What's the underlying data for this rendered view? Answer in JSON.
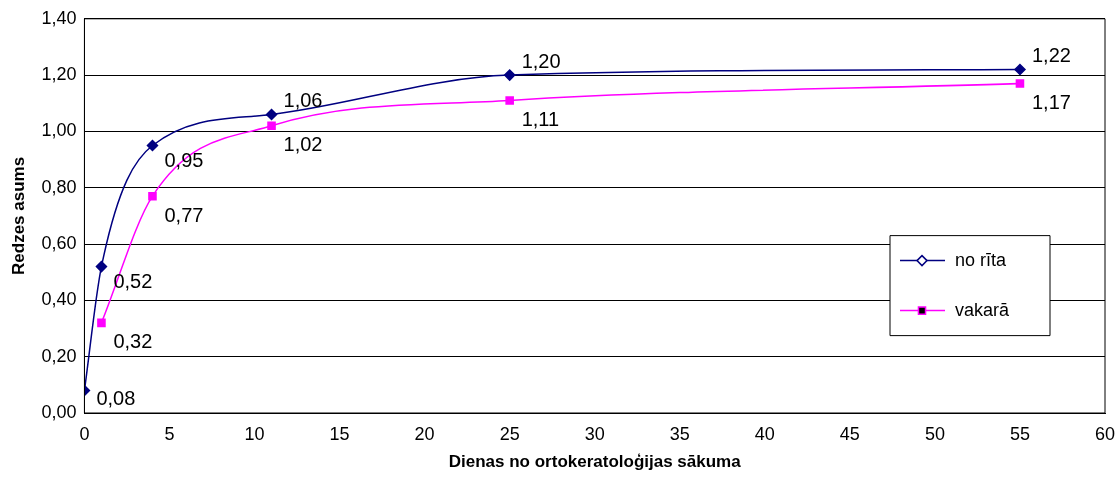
{
  "chart_data": {
    "type": "line",
    "xlabel": "Dienas no ortokeratoloģijas sākuma",
    "ylabel": "Redzes asums",
    "xlim": [
      0,
      60
    ],
    "xticks": [
      0,
      5,
      10,
      15,
      20,
      25,
      30,
      35,
      40,
      45,
      50,
      55,
      60
    ],
    "ylim": [
      0,
      1.4
    ],
    "yticks": [
      {
        "value": 0,
        "label": "0,00"
      },
      {
        "value": 0.2,
        "label": "0,20"
      },
      {
        "value": 0.4,
        "label": "0,40"
      },
      {
        "value": 0.6,
        "label": "0,60"
      },
      {
        "value": 0.8,
        "label": "0,80"
      },
      {
        "value": 1,
        "label": "1,00"
      },
      {
        "value": 1.2,
        "label": "1,20"
      },
      {
        "value": 1.4,
        "label": "1,40"
      }
    ],
    "grid": "y",
    "legend": "right",
    "line_style": "solid",
    "series": [
      {
        "name": "no rīta",
        "color": "#000080",
        "marker": "diamond",
        "x": [
          0,
          1,
          4,
          11,
          25,
          55
        ],
        "values": [
          0.08,
          0.52,
          0.95,
          1.06,
          1.2,
          1.22
        ],
        "value_labels": [
          "0,08",
          "0,52",
          "0,95",
          "1,06",
          "1,20",
          "1,22"
        ]
      },
      {
        "name": "vakarā",
        "color": "#ff00ff",
        "marker": "square",
        "x": [
          1,
          4,
          11,
          25,
          55
        ],
        "values": [
          0.32,
          0.77,
          1.02,
          1.11,
          1.17
        ],
        "value_labels": [
          "0,32",
          "0,77",
          "1,02",
          "1,11",
          "1,17"
        ]
      }
    ]
  }
}
